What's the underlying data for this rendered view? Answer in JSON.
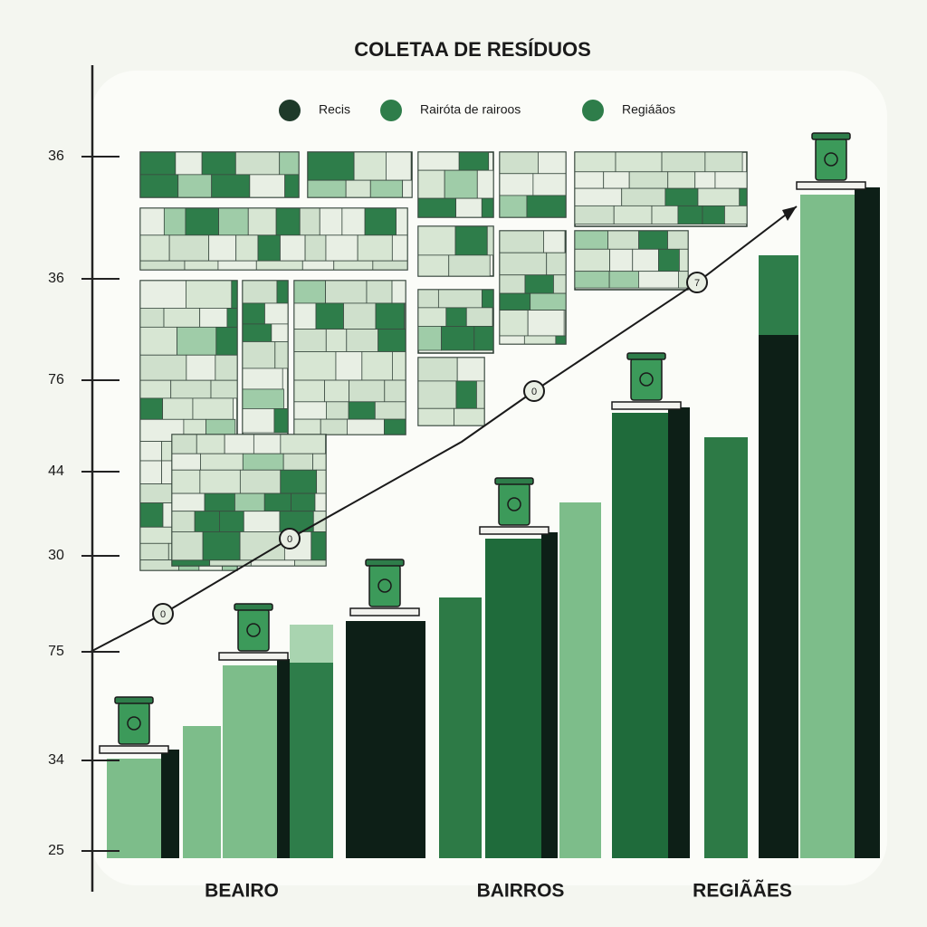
{
  "title": "COLETAA DE RESÍDUOS",
  "legend": [
    "Recis",
    "Rairóta de rairoos",
    "Regiáãos"
  ],
  "y_axis_labels": [
    "36",
    "36",
    "76",
    "44",
    "30",
    "75",
    "34",
    "25"
  ],
  "x_labels": [
    "BEAIRO",
    "BAIRROS",
    "REGIÃÃES"
  ],
  "route_markers": [
    "0",
    "0",
    "0",
    "7"
  ]
}
